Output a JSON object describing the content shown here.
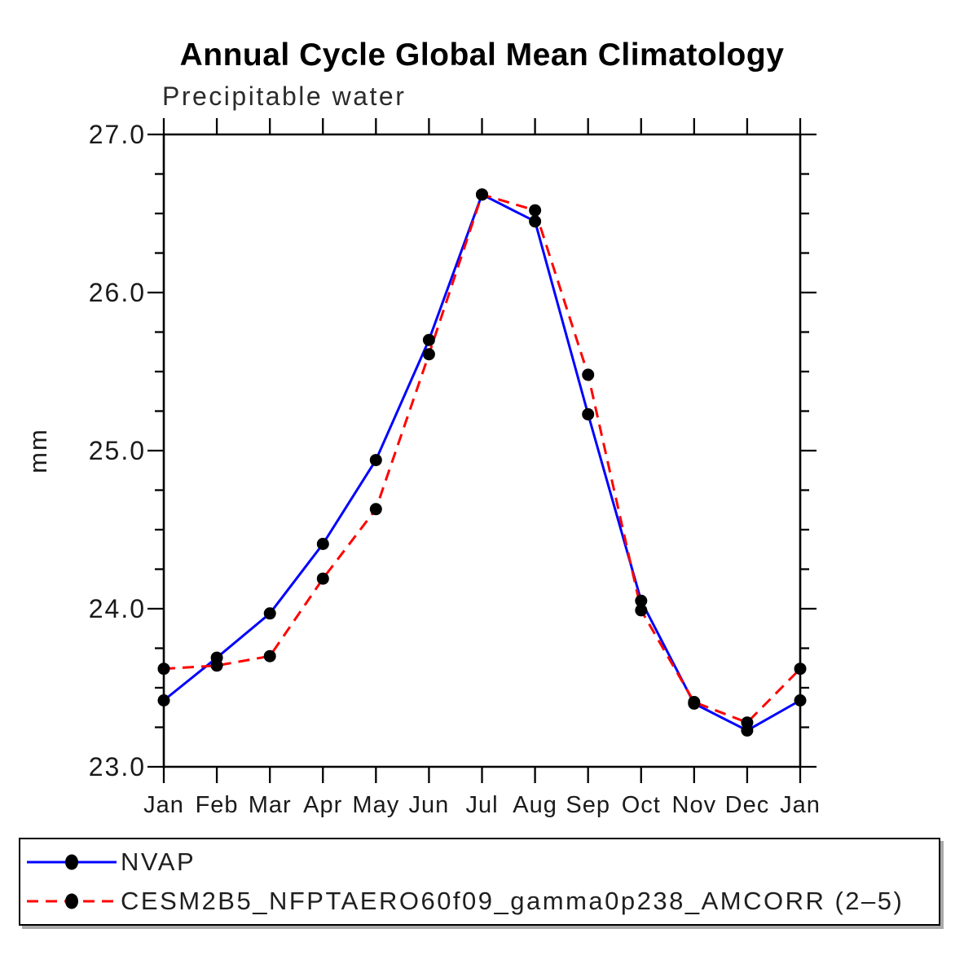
{
  "chart_data": {
    "type": "line",
    "title": "Annual Cycle Global Mean Climatology",
    "subtitle": "Precipitable water",
    "ylabel": "mm",
    "categories": [
      "Jan",
      "Feb",
      "Mar",
      "Apr",
      "May",
      "Jun",
      "Jul",
      "Aug",
      "Sep",
      "Oct",
      "Nov",
      "Dec",
      "Jan"
    ],
    "series": [
      {
        "name": "NVAP",
        "color": "#0000ff",
        "line_style": "solid",
        "marker": "filled-black-circle",
        "values": [
          23.42,
          23.69,
          23.97,
          24.41,
          24.94,
          25.7,
          26.62,
          26.45,
          25.23,
          24.05,
          23.4,
          23.23,
          23.42
        ]
      },
      {
        "name": "CESM2B5_NFPTAERO60f09_gamma0p238_AMCORR (2–5)",
        "color": "#ff0000",
        "line_style": "dashed",
        "marker": "filled-black-circle",
        "values": [
          23.62,
          23.64,
          23.7,
          24.19,
          24.63,
          25.61,
          26.62,
          26.52,
          25.48,
          23.99,
          23.41,
          23.28,
          23.62
        ]
      }
    ],
    "ylim": [
      23.0,
      27.0
    ],
    "ytick_major_interval": 1.0,
    "ytick_minor_interval": 0.25,
    "ytick_labels": [
      "23.0",
      "24.0",
      "25.0",
      "26.0",
      "27.0"
    ],
    "grid": false,
    "legend_position": "bottom-left-box"
  },
  "colors": {
    "axis": "#000000",
    "marker": "#000000",
    "tick_text": "#1a1a1a",
    "nvap_line": "#0000ff",
    "cesm_line": "#ff0000",
    "legend_shadow": "#a9a9a9"
  }
}
